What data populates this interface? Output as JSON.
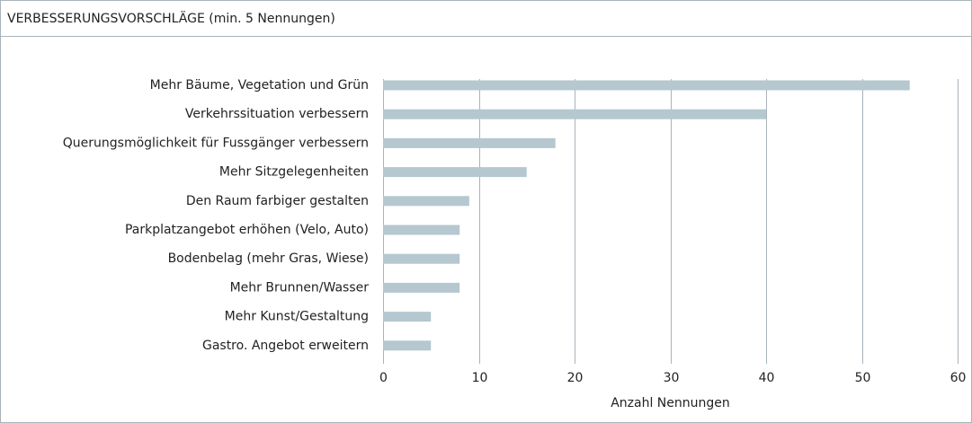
{
  "chart_data": {
    "type": "bar",
    "orientation": "horizontal",
    "title": "VERBESSERUNGSVORSCHLÄGE (min. 5 Nennungen)",
    "x_label": "Anzahl Nennungen",
    "categories": [
      "Mehr Bäume, Vegetation und Grün",
      "Verkehrssituation verbessern",
      "Querungsmöglichkeit für Fussgänger verbessern",
      "Mehr Sitzgelegenheiten",
      "Den Raum farbiger gestalten",
      "Parkplatzangebot erhöhen (Velo, Auto)",
      "Bodenbelag (mehr Gras, Wiese)",
      "Mehr Brunnen/Wasser",
      "Mehr Kunst/Gestaltung",
      "Gastro. Angebot erweitern"
    ],
    "values": [
      55,
      40,
      18,
      15,
      9,
      8,
      8,
      8,
      5,
      5
    ],
    "color": "#b5c7cf",
    "xlim": [
      0,
      60
    ],
    "xticks": [
      0,
      10,
      20,
      30,
      40,
      50,
      60
    ],
    "grid": true
  }
}
